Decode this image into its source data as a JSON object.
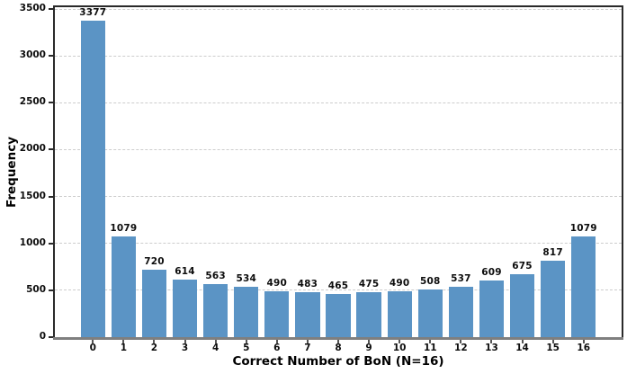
{
  "chart_data": {
    "type": "bar",
    "title": "",
    "xlabel": "Correct Number of BoN (N=16)",
    "ylabel": "Frequency",
    "categories": [
      "0",
      "1",
      "2",
      "3",
      "4",
      "5",
      "6",
      "7",
      "8",
      "9",
      "10",
      "11",
      "12",
      "13",
      "14",
      "15",
      "16"
    ],
    "values": [
      3377,
      1079,
      720,
      614,
      563,
      534,
      490,
      483,
      465,
      475,
      490,
      508,
      537,
      609,
      675,
      817,
      1079
    ],
    "value_labels_shown": true,
    "yticks": [
      0,
      500,
      1000,
      1500,
      2000,
      2500,
      3000,
      3500
    ],
    "ylim": [
      0,
      3500
    ],
    "grid": "horizontal-dashed",
    "legend": "none",
    "colors": {
      "bar_fill": "#5B94C5",
      "gridline": "#cdcdcd",
      "spine_dark": "#2a2a2a",
      "baseline_gray": "#7f7f7f",
      "text": "#0d0d0d"
    }
  }
}
